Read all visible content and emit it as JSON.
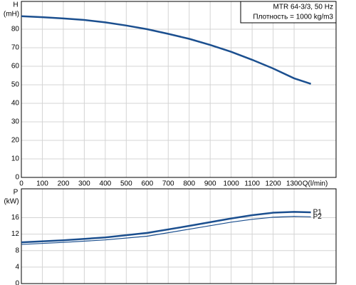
{
  "chart_data": [
    {
      "type": "line",
      "y_label_top": "H",
      "y_label": "(mH)",
      "x_label": "Q(l/min)",
      "annotations": [
        "MTR 64-3/3, 50 Hz",
        "Плотность = 1000 kg/m3"
      ],
      "x": [
        0,
        100,
        200,
        300,
        400,
        500,
        600,
        700,
        800,
        900,
        1000,
        1100,
        1200,
        1300,
        1380
      ],
      "series": [
        {
          "color": "#1b4f8f",
          "values": [
            87,
            86.5,
            85.8,
            85,
            83.7,
            82,
            80,
            77.5,
            74.8,
            71.5,
            67.8,
            63.5,
            58.8,
            53.5,
            50.5
          ]
        }
      ],
      "xlim": [
        0,
        1500
      ],
      "xticks": [
        0,
        100,
        200,
        300,
        400,
        500,
        600,
        700,
        800,
        900,
        1000,
        1100,
        1200,
        1300
      ],
      "ylim": [
        0,
        95
      ],
      "yticks": [
        0,
        10,
        20,
        30,
        40,
        50,
        60,
        70,
        80
      ],
      "grid": true
    },
    {
      "type": "line",
      "y_label_top": "P",
      "y_label": "(kW)",
      "x": [
        0,
        200,
        400,
        600,
        800,
        1000,
        1100,
        1200,
        1300,
        1380
      ],
      "series": [
        {
          "name": "P1",
          "color": "#1b4f8f",
          "values": [
            10,
            10.5,
            11.2,
            12.3,
            14,
            15.8,
            16.6,
            17.2,
            17.4,
            17.3
          ]
        },
        {
          "name": "P2",
          "color": "#1b4f8f",
          "values": [
            9.5,
            10,
            10.6,
            11.5,
            13.2,
            14.9,
            15.6,
            16.1,
            16.3,
            16.2
          ]
        }
      ],
      "xlim": [
        0,
        1500
      ],
      "ylim": [
        0,
        23
      ],
      "yticks": [
        0,
        4,
        8,
        12,
        16
      ],
      "grid": true
    }
  ]
}
